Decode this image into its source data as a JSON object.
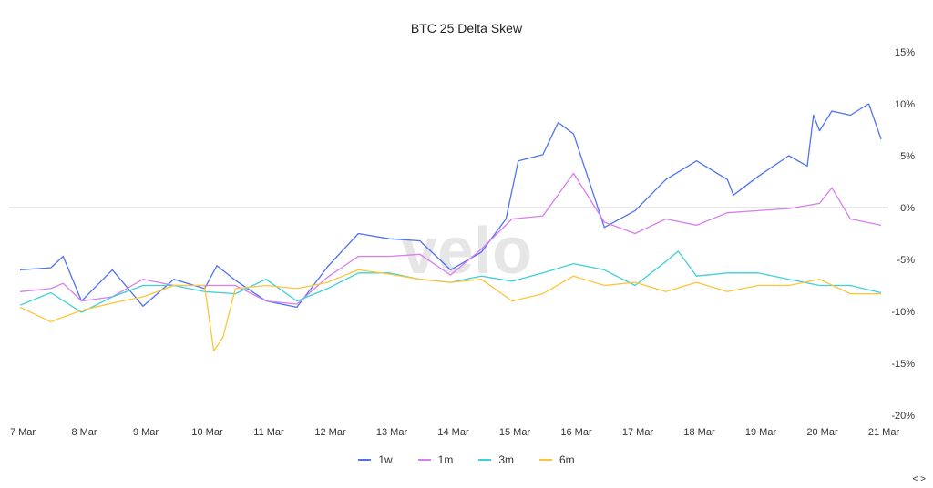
{
  "chart_data": {
    "type": "line",
    "title": "BTC 25 Delta Skew",
    "xlabel": "",
    "ylabel": "",
    "x_tick_labels": [
      "7 Mar",
      "8 Mar",
      "9 Mar",
      "10 Mar",
      "11 Mar",
      "12 Mar",
      "13 Mar",
      "14 Mar",
      "15 Mar",
      "16 Mar",
      "17 Mar",
      "18 Mar",
      "19 Mar",
      "20 Mar",
      "21 Mar"
    ],
    "y_tick_labels": [
      "15%",
      "10%",
      "5%",
      "0%",
      "-5%",
      "-10%",
      "-15%",
      "-20%"
    ],
    "y_ticks": [
      15,
      10,
      5,
      0,
      -5,
      -10,
      -15,
      -20
    ],
    "ylim": [
      -20,
      15
    ],
    "xlim_days": [
      0,
      14
    ],
    "grid": false,
    "reference_line": 0,
    "legend_position": "bottom-center",
    "watermark": "velo",
    "series": [
      {
        "name": "1w",
        "color": "#4f72f5",
        "points": [
          [
            0,
            -6.0
          ],
          [
            0.5,
            -5.8
          ],
          [
            0.7,
            -4.7
          ],
          [
            1,
            -9.0
          ],
          [
            1.5,
            -6.0
          ],
          [
            2,
            -9.5
          ],
          [
            2.5,
            -6.9
          ],
          [
            3,
            -7.8
          ],
          [
            3.2,
            -5.6
          ],
          [
            3.5,
            -7.0
          ],
          [
            4,
            -9.0
          ],
          [
            4.5,
            -9.6
          ],
          [
            5,
            -5.7
          ],
          [
            5.5,
            -2.5
          ],
          [
            6,
            -3.0
          ],
          [
            6.5,
            -3.2
          ],
          [
            7,
            -6.0
          ],
          [
            7.5,
            -4.3
          ],
          [
            7.9,
            -1.1
          ],
          [
            8.1,
            4.5
          ],
          [
            8.5,
            5.1
          ],
          [
            8.75,
            8.2
          ],
          [
            9,
            7.1
          ],
          [
            9.5,
            -1.9
          ],
          [
            10,
            -0.3
          ],
          [
            10.5,
            2.7
          ],
          [
            11,
            4.5
          ],
          [
            11.5,
            2.7
          ],
          [
            11.6,
            1.2
          ],
          [
            12,
            3.0
          ],
          [
            12.5,
            5.0
          ],
          [
            12.8,
            4.0
          ],
          [
            12.9,
            8.9
          ],
          [
            13,
            7.4
          ],
          [
            13.2,
            9.3
          ],
          [
            13.5,
            8.9
          ],
          [
            13.8,
            10.0
          ],
          [
            14,
            6.6
          ]
        ]
      },
      {
        "name": "1m",
        "color": "#d77ef0",
        "points": [
          [
            0,
            -8.1
          ],
          [
            0.5,
            -7.8
          ],
          [
            0.7,
            -7.3
          ],
          [
            1,
            -9.0
          ],
          [
            1.5,
            -8.6
          ],
          [
            2,
            -6.9
          ],
          [
            2.5,
            -7.5
          ],
          [
            3,
            -7.5
          ],
          [
            3.5,
            -7.5
          ],
          [
            4,
            -9.0
          ],
          [
            4.5,
            -9.3
          ],
          [
            5,
            -6.7
          ],
          [
            5.5,
            -4.7
          ],
          [
            6,
            -4.7
          ],
          [
            6.5,
            -4.5
          ],
          [
            7,
            -6.5
          ],
          [
            7.5,
            -4.0
          ],
          [
            8,
            -1.1
          ],
          [
            8.5,
            -0.8
          ],
          [
            9,
            3.3
          ],
          [
            9.5,
            -1.4
          ],
          [
            10,
            -2.5
          ],
          [
            10.5,
            -1.1
          ],
          [
            11,
            -1.7
          ],
          [
            11.5,
            -0.5
          ],
          [
            12,
            -0.3
          ],
          [
            12.5,
            -0.1
          ],
          [
            13,
            0.4
          ],
          [
            13.2,
            1.9
          ],
          [
            13.5,
            -1.1
          ],
          [
            14,
            -1.7
          ]
        ]
      },
      {
        "name": "3m",
        "color": "#3fd0d8",
        "points": [
          [
            0,
            -9.4
          ],
          [
            0.5,
            -8.2
          ],
          [
            1,
            -10.1
          ],
          [
            1.5,
            -8.6
          ],
          [
            2,
            -7.5
          ],
          [
            2.5,
            -7.5
          ],
          [
            3,
            -8.1
          ],
          [
            3.5,
            -8.3
          ],
          [
            4,
            -6.9
          ],
          [
            4.5,
            -9.0
          ],
          [
            5,
            -7.8
          ],
          [
            5.5,
            -6.3
          ],
          [
            6,
            -6.3
          ],
          [
            6.5,
            -6.9
          ],
          [
            7,
            -7.2
          ],
          [
            7.5,
            -6.6
          ],
          [
            8,
            -7.1
          ],
          [
            8.5,
            -6.3
          ],
          [
            9,
            -5.4
          ],
          [
            9.5,
            -6.0
          ],
          [
            10,
            -7.5
          ],
          [
            10.5,
            -5.2
          ],
          [
            10.7,
            -4.2
          ],
          [
            11,
            -6.6
          ],
          [
            11.5,
            -6.3
          ],
          [
            12,
            -6.3
          ],
          [
            12.5,
            -6.9
          ],
          [
            13,
            -7.5
          ],
          [
            13.5,
            -7.5
          ],
          [
            14,
            -8.2
          ]
        ]
      },
      {
        "name": "6m",
        "color": "#fcc53b",
        "points": [
          [
            0,
            -9.6
          ],
          [
            0.5,
            -11.0
          ],
          [
            1,
            -9.9
          ],
          [
            1.5,
            -9.2
          ],
          [
            2,
            -8.6
          ],
          [
            2.5,
            -7.5
          ],
          [
            3,
            -7.5
          ],
          [
            3.15,
            -13.8
          ],
          [
            3.3,
            -12.5
          ],
          [
            3.5,
            -7.8
          ],
          [
            4,
            -7.5
          ],
          [
            4.5,
            -7.8
          ],
          [
            5,
            -7.2
          ],
          [
            5.5,
            -6.0
          ],
          [
            6,
            -6.4
          ],
          [
            6.5,
            -6.9
          ],
          [
            7,
            -7.2
          ],
          [
            7.5,
            -6.9
          ],
          [
            8,
            -9.0
          ],
          [
            8.5,
            -8.3
          ],
          [
            9,
            -6.6
          ],
          [
            9.5,
            -7.5
          ],
          [
            10,
            -7.2
          ],
          [
            10.5,
            -8.1
          ],
          [
            11,
            -7.2
          ],
          [
            11.5,
            -8.1
          ],
          [
            12,
            -7.5
          ],
          [
            12.5,
            -7.5
          ],
          [
            13,
            -6.9
          ],
          [
            13.5,
            -8.3
          ],
          [
            14,
            -8.3
          ]
        ]
      }
    ]
  },
  "nav": {
    "label": "< >"
  }
}
